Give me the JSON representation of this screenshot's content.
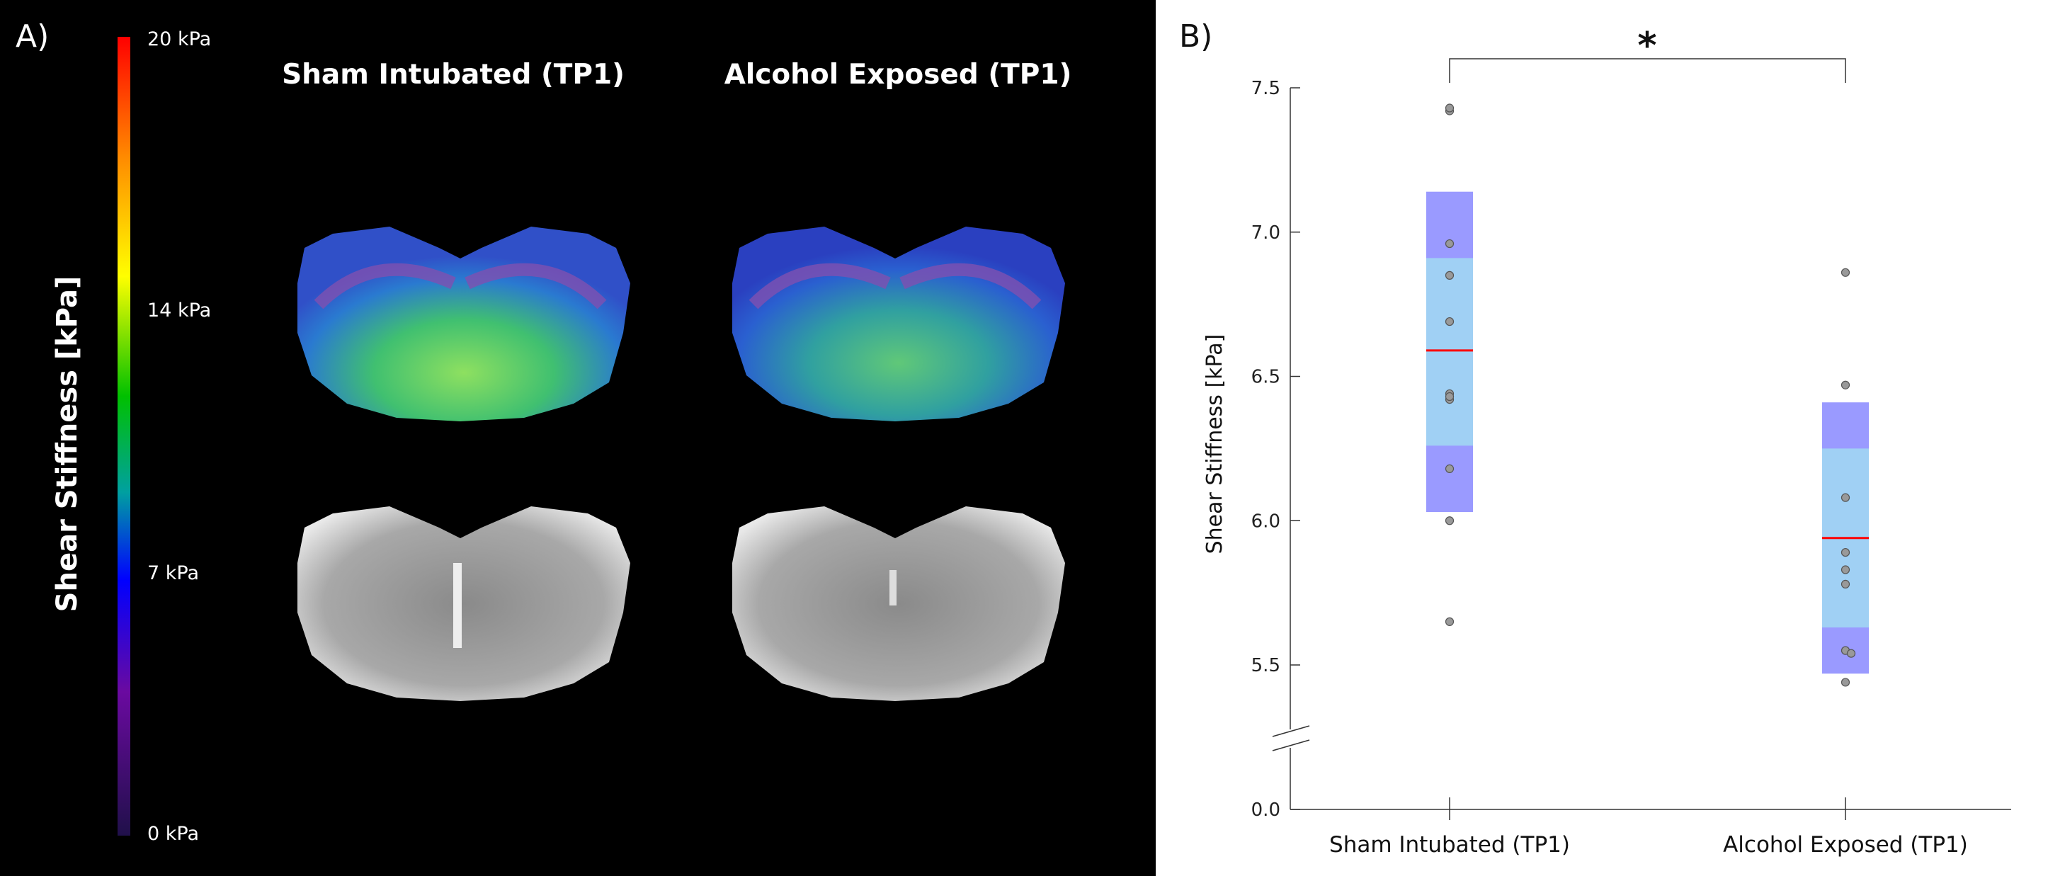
{
  "panel_a": {
    "label": "A)",
    "colorbar_title": "Shear Stiffness [kPa]",
    "colorbar_ticks": [
      "20 kPa",
      "14 kPa",
      "7 kPa",
      "0 kPa"
    ],
    "colorbar_colors": [
      "#ff0000",
      "#ff8a00",
      "#ffff00",
      "#00c000",
      "#00a0a0",
      "#0000ff",
      "#6a0aa0",
      "#20104a"
    ],
    "columns": [
      "Sham Intubated (TP1)",
      "Alcohol Exposed (TP1)"
    ]
  },
  "chart_data": {
    "type": "box-scatter",
    "panel_label": "B)",
    "ylabel": "Shear Stiffness [kPa]",
    "ylim": [
      0.0,
      7.5
    ],
    "axis_break": [
      0.0,
      5.5
    ],
    "yticks": [
      "0.0",
      "5.5",
      "6.0",
      "6.5",
      "7.0",
      "7.5"
    ],
    "categories": [
      "Sham Intubated (TP1)",
      "Alcohol Exposed (TP1)"
    ],
    "significance": "*",
    "grid": false,
    "groups": [
      {
        "points": [
          7.42,
          7.43,
          6.96,
          6.85,
          6.69,
          6.44,
          6.42,
          6.43,
          6.18,
          6.0,
          5.65
        ],
        "mean": 6.59,
        "inner_range": [
          6.26,
          6.91
        ],
        "outer_range": [
          6.03,
          7.14
        ]
      },
      {
        "points": [
          6.86,
          6.47,
          6.08,
          5.89,
          5.83,
          5.78,
          5.55,
          5.54,
          5.44
        ],
        "mean": 5.94,
        "inner_range": [
          5.63,
          6.25
        ],
        "outer_range": [
          5.47,
          6.41
        ]
      }
    ],
    "colors": {
      "outer": "#9a9aff",
      "inner": "#a0d0f4",
      "mean": "#ff0000",
      "point": "#999999"
    }
  }
}
